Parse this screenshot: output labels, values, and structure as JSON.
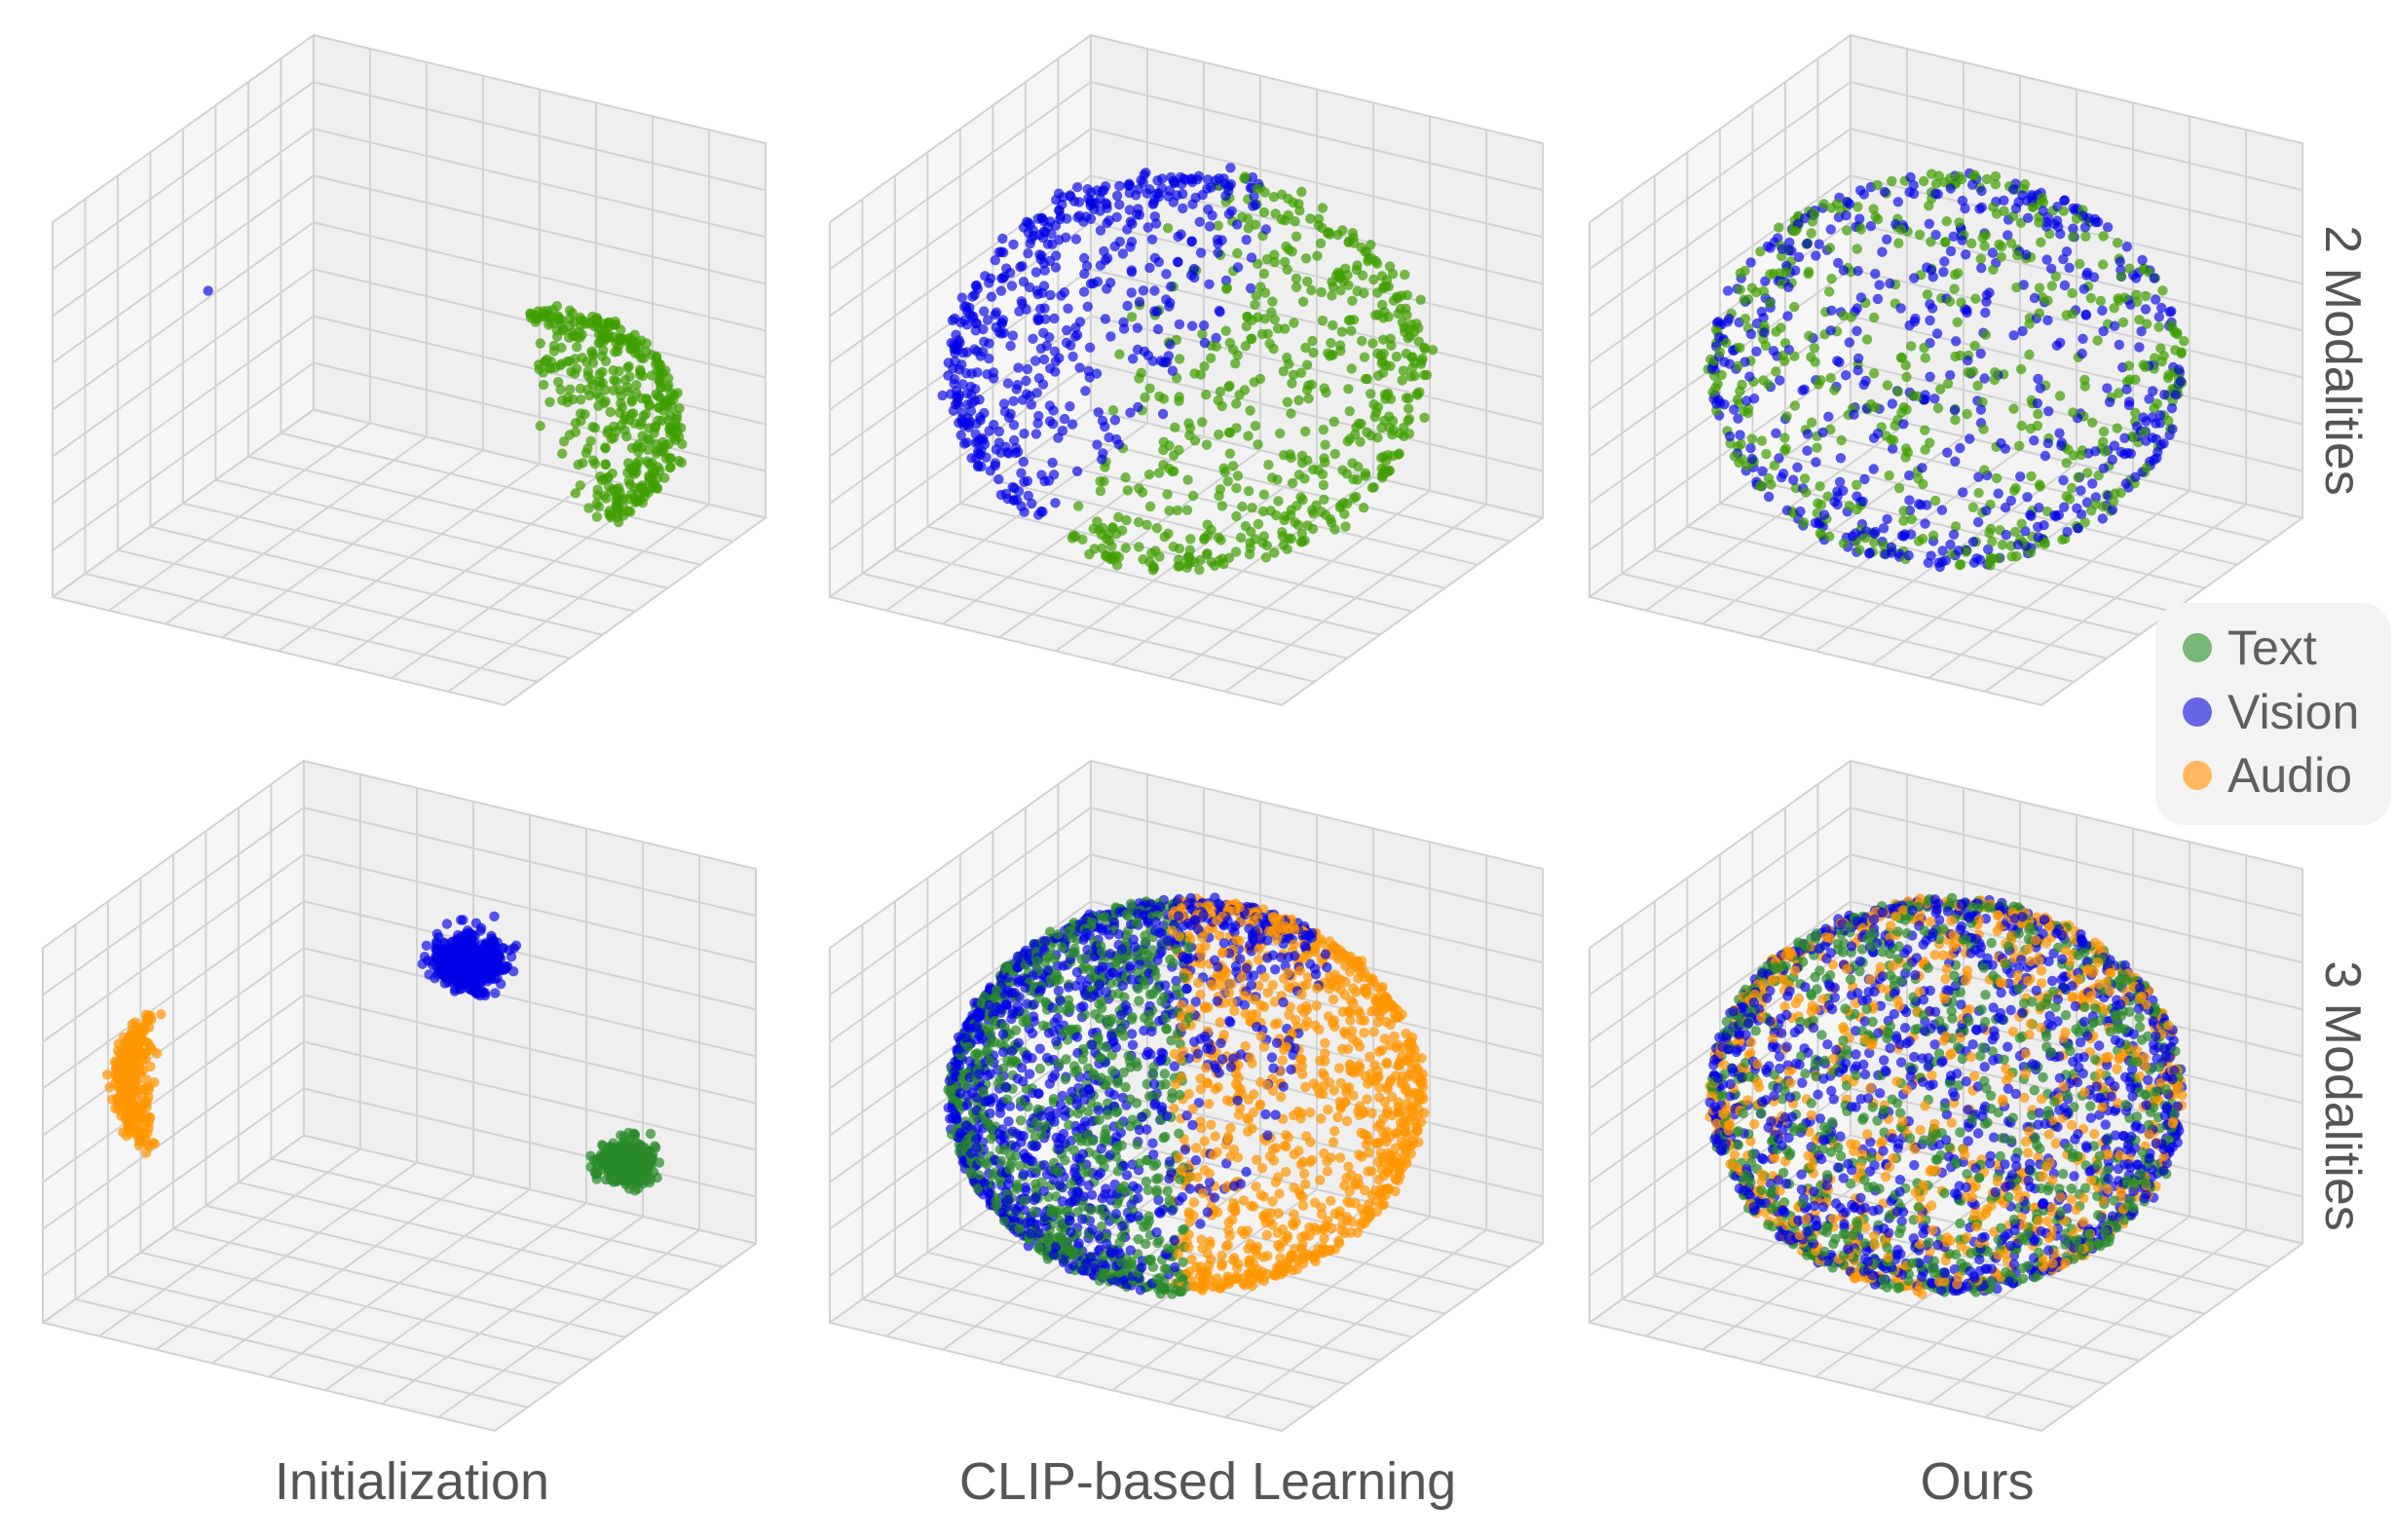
{
  "chart_data": {
    "type": "scatter",
    "subtype": "3d",
    "grid": true,
    "axis_ticks_visible": false,
    "legend": {
      "placement": "right",
      "entries": [
        {
          "label": "Text",
          "color": "#77b877"
        },
        {
          "label": "Vision",
          "color": "#6666e2"
        },
        {
          "label": "Audio",
          "color": "#ffb85f"
        }
      ]
    },
    "columns": [
      "Initialization",
      "CLIP-based Learning",
      "Ours"
    ],
    "rows": [
      "2 Modalities",
      "3 Modalities"
    ],
    "colors": {
      "text_2mod": "#3f9e00",
      "text_3mod": "#2a8a2a",
      "vision": "#0000e6",
      "audio": "#ff9500"
    },
    "axis_range": [
      -1,
      1
    ],
    "panels": [
      {
        "row": "2 Modalities",
        "column": "Initialization",
        "series": [
          {
            "modality": "Text",
            "color": "#3f9e00",
            "n": 420,
            "center": [
              0.35,
              0.45,
              -0.4
            ],
            "radius": 0.5,
            "direction": [
              0.8,
              0.5,
              0.3
            ],
            "min_cos": 0.15,
            "noise": 0.02
          },
          {
            "modality": "Vision",
            "color": "#0000e6",
            "n": 1,
            "center": [
              -0.6,
              -0.5,
              0.5
            ],
            "radius": 0,
            "direction": [
              0,
              0,
              1
            ],
            "min_cos": -1,
            "noise": 0
          }
        ]
      },
      {
        "row": "2 Modalities",
        "column": "CLIP-based Learning",
        "series": [
          {
            "modality": "Vision",
            "color": "#0000e6",
            "n": 520,
            "center": [
              0,
              0,
              0
            ],
            "radius": 0.9,
            "direction": [
              -0.75,
              -0.35,
              0.55
            ],
            "min_cos": 0.2,
            "noise": 0.02
          },
          {
            "modality": "Text",
            "color": "#3f9e00",
            "n": 560,
            "center": [
              0,
              0,
              0
            ],
            "radius": 0.9,
            "direction": [
              0.8,
              0.45,
              -0.35
            ],
            "min_cos": -0.15,
            "noise": 0.02
          }
        ]
      },
      {
        "row": "2 Modalities",
        "column": "Ours",
        "series": [
          {
            "modality": "Text",
            "color": "#3f9e00",
            "n": 520,
            "center": [
              0,
              0,
              0
            ],
            "radius": 0.9,
            "direction": [
              0,
              0,
              1
            ],
            "min_cos": -1,
            "noise": 0.01
          },
          {
            "modality": "Vision",
            "color": "#0000e6",
            "n": 520,
            "center": [
              0,
              0,
              0
            ],
            "radius": 0.9,
            "direction": [
              0,
              0,
              1
            ],
            "min_cos": -1,
            "noise": 0.01
          }
        ]
      },
      {
        "row": "3 Modalities",
        "column": "Initialization",
        "series": [
          {
            "modality": "Audio",
            "color": "#ff9500",
            "n": 260,
            "center": [
              -0.35,
              -0.65,
              0.3
            ],
            "radius": 0.45,
            "direction": [
              -0.866,
              -0.5,
              0
            ],
            "min_cos": 0.75,
            "noise": 0.02
          },
          {
            "modality": "Vision",
            "color": "#0000e6",
            "n": 500,
            "center": [
              0,
              0.54,
              0.45
            ],
            "radius": 0.07,
            "direction": [
              0,
              0,
              1
            ],
            "min_cos": -1,
            "noise": 0.035
          },
          {
            "modality": "Text",
            "color": "#2a8a2a",
            "n": 400,
            "center": [
              0.7,
              0.53,
              -0.42
            ],
            "radius": 0.05,
            "direction": [
              0,
              0,
              1
            ],
            "min_cos": -1,
            "noise": 0.03
          }
        ]
      },
      {
        "row": "3 Modalities",
        "column": "CLIP-based Learning",
        "series": [
          {
            "modality": "Text",
            "color": "#2a8a2a",
            "n": 900,
            "center": [
              0,
              0,
              0
            ],
            "radius": 0.9,
            "direction": [
              -0.85,
              -0.5,
              0
            ],
            "min_cos": 0.0,
            "noise": 0.01
          },
          {
            "modality": "Vision",
            "color": "#0000e6",
            "n": 1100,
            "center": [
              0,
              0,
              0
            ],
            "radius": 0.9,
            "direction": [
              -0.7,
              -0.4,
              0.4
            ],
            "min_cos": -0.2,
            "noise": 0.01
          },
          {
            "modality": "Audio",
            "color": "#ff9500",
            "n": 1000,
            "center": [
              0,
              0,
              0
            ],
            "radius": 0.9,
            "direction": [
              0.85,
              0.5,
              0
            ],
            "min_cos": -0.05,
            "noise": 0.01
          }
        ]
      },
      {
        "row": "3 Modalities",
        "column": "Ours",
        "series": [
          {
            "modality": "Text",
            "color": "#2a8a2a",
            "n": 900,
            "center": [
              0,
              0,
              0
            ],
            "radius": 0.9,
            "direction": [
              0,
              0,
              1
            ],
            "min_cos": -1,
            "noise": 0.01
          },
          {
            "modality": "Vision",
            "color": "#0000e6",
            "n": 1100,
            "center": [
              0,
              0,
              0
            ],
            "radius": 0.9,
            "direction": [
              0,
              0,
              1
            ],
            "min_cos": -1,
            "noise": 0.01
          },
          {
            "modality": "Audio",
            "color": "#ff9500",
            "n": 800,
            "center": [
              0,
              0,
              0
            ],
            "radius": 0.9,
            "direction": [
              0,
              0,
              1
            ],
            "min_cos": -1,
            "noise": 0.01
          }
        ]
      }
    ]
  }
}
